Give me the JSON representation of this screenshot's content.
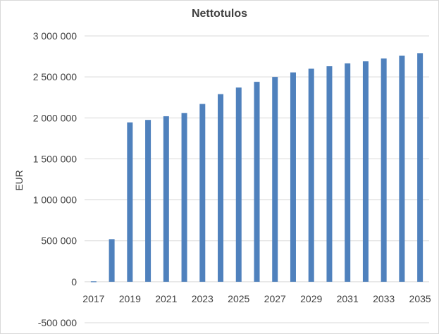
{
  "chart_data": {
    "type": "bar",
    "title": "Nettotulos",
    "xlabel": "",
    "ylabel": "EUR",
    "ylim": [
      -500000,
      3000000
    ],
    "yticks": [
      -500000,
      0,
      500000,
      1000000,
      1500000,
      2000000,
      2500000,
      3000000
    ],
    "ytick_labels": [
      "-500 000",
      "0",
      "500 000",
      "1 000 000",
      "1 500 000",
      "2 000 000",
      "2 500 000",
      "3 000 000"
    ],
    "categories": [
      "2017",
      "2018",
      "2019",
      "2020",
      "2021",
      "2022",
      "2023",
      "2024",
      "2025",
      "2026",
      "2027",
      "2028",
      "2029",
      "2030",
      "2031",
      "2032",
      "2033",
      "2034",
      "2035"
    ],
    "xtick_labels": [
      "2017",
      "2019",
      "2021",
      "2023",
      "2025",
      "2027",
      "2029",
      "2031",
      "2033",
      "2035"
    ],
    "values": [
      5000,
      520000,
      1945000,
      1975000,
      2020000,
      2060000,
      2170000,
      2290000,
      2370000,
      2440000,
      2500000,
      2555000,
      2600000,
      2630000,
      2665000,
      2690000,
      2725000,
      2760000,
      2790000
    ],
    "bar_color": "#4f81bd",
    "grid": true,
    "legend": false
  }
}
